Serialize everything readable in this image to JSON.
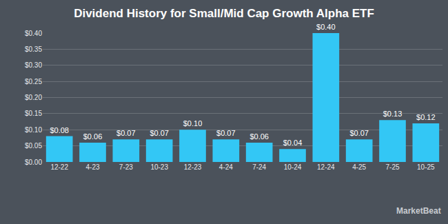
{
  "chart_data": {
    "type": "bar",
    "title": "Dividend History for Small/Mid Cap Growth Alpha ETF",
    "categories": [
      "12-22",
      "4-23",
      "7-23",
      "10-23",
      "12-23",
      "4-24",
      "7-24",
      "10-24",
      "12-24",
      "4-25",
      "7-25",
      "10-25"
    ],
    "values": [
      0.08,
      0.06,
      0.07,
      0.07,
      0.1,
      0.07,
      0.06,
      0.04,
      0.4,
      0.07,
      0.13,
      0.12
    ],
    "value_labels": [
      "$0.08",
      "$0.06",
      "$0.07",
      "$0.07",
      "$0.10",
      "$0.07",
      "$0.06",
      "$0.04",
      "$0.40",
      "$0.07",
      "$0.13",
      "$0.12"
    ],
    "color": "#33c7f5",
    "ylim": [
      0,
      0.4
    ],
    "yticks": [
      {
        "value": 0,
        "label": "$0.00"
      },
      {
        "value": 0.05,
        "label": "$0.05"
      },
      {
        "value": 0.1,
        "label": "$0.10"
      },
      {
        "value": 0.15,
        "label": "$0.15"
      },
      {
        "value": 0.2,
        "label": "$0.20"
      },
      {
        "value": 0.25,
        "label": "$0.25"
      },
      {
        "value": 0.3,
        "label": "$0.30"
      },
      {
        "value": 0.35,
        "label": "$0.35"
      },
      {
        "value": 0.4,
        "label": "$0.40"
      }
    ],
    "grid": true,
    "data_labels": true,
    "annotations": [
      "MarketBeat"
    ]
  }
}
